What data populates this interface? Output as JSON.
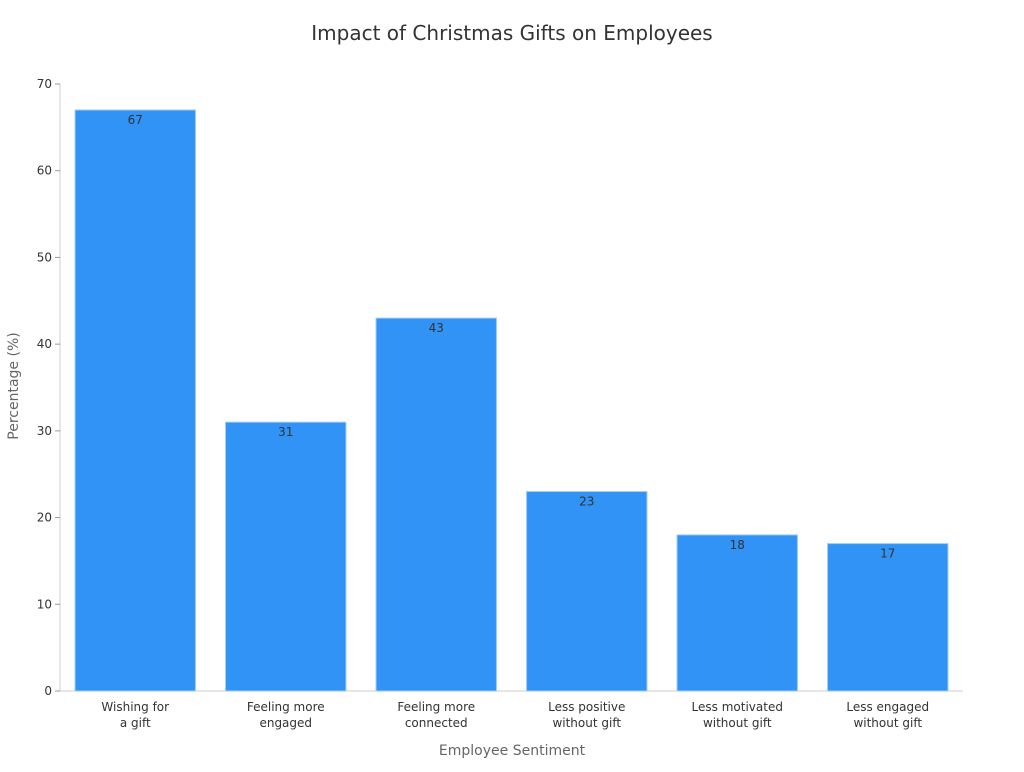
{
  "chart_data": {
    "type": "bar",
    "title": "Impact of Christmas Gifts on Employees",
    "xlabel": "Employee Sentiment",
    "ylabel": "Percentage (%)",
    "categories": [
      [
        "Wishing for",
        "a gift"
      ],
      [
        "Feeling more",
        "engaged"
      ],
      [
        "Feeling more",
        "connected"
      ],
      [
        "Less positive",
        "without gift"
      ],
      [
        "Less motivated",
        "without gift"
      ],
      [
        "Less engaged",
        "without gift"
      ]
    ],
    "values": [
      67,
      31,
      43,
      23,
      18,
      17
    ],
    "ylim": [
      0,
      70
    ],
    "yticks": [
      0,
      10,
      20,
      30,
      40,
      50,
      60,
      70
    ],
    "grid": false,
    "bar_color": "#3093f5",
    "bar_edge_color": "#9ec9f5",
    "data_labels": true
  }
}
